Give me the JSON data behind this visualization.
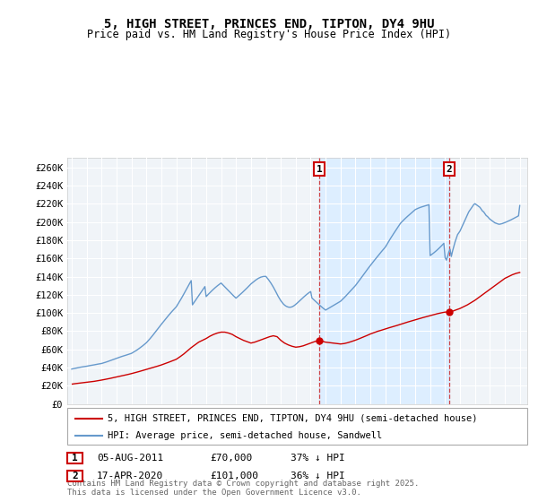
{
  "title": "5, HIGH STREET, PRINCES END, TIPTON, DY4 9HU",
  "subtitle": "Price paid vs. HM Land Registry's House Price Index (HPI)",
  "ylabel_ticks": [
    "£0",
    "£20K",
    "£40K",
    "£60K",
    "£80K",
    "£100K",
    "£120K",
    "£140K",
    "£160K",
    "£180K",
    "£200K",
    "£220K",
    "£240K",
    "£260K"
  ],
  "ytick_values": [
    0,
    20000,
    40000,
    60000,
    80000,
    100000,
    120000,
    140000,
    160000,
    180000,
    200000,
    220000,
    240000,
    260000
  ],
  "ylim": [
    0,
    270000
  ],
  "xlim": [
    1994.7,
    2025.5
  ],
  "background_color": "#f0f0f0",
  "red_color": "#cc0000",
  "blue_color": "#6699cc",
  "shade_color": "#ddeeff",
  "red_label": "5, HIGH STREET, PRINCES END, TIPTON, DY4 9HU (semi-detached house)",
  "blue_label": "HPI: Average price, semi-detached house, Sandwell",
  "marker1_date": "05-AUG-2011",
  "marker1_price": "£70,000",
  "marker1_hpi": "37% ↓ HPI",
  "marker1_year": 2011.58,
  "marker1_value": 70000,
  "marker2_date": "17-APR-2020",
  "marker2_price": "£101,000",
  "marker2_hpi": "36% ↓ HPI",
  "marker2_year": 2020.29,
  "marker2_value": 101000,
  "footer": "Contains HM Land Registry data © Crown copyright and database right 2025.\nThis data is licensed under the Open Government Licence v3.0.",
  "hpi_x": [
    1995.0,
    1995.083,
    1995.167,
    1995.25,
    1995.333,
    1995.417,
    1995.5,
    1995.583,
    1995.667,
    1995.75,
    1995.833,
    1995.917,
    1996.0,
    1996.083,
    1996.167,
    1996.25,
    1996.333,
    1996.417,
    1996.5,
    1996.583,
    1996.667,
    1996.75,
    1996.833,
    1996.917,
    1997.0,
    1997.083,
    1997.167,
    1997.25,
    1997.333,
    1997.417,
    1997.5,
    1997.583,
    1997.667,
    1997.75,
    1997.833,
    1997.917,
    1998.0,
    1998.083,
    1998.167,
    1998.25,
    1998.333,
    1998.417,
    1998.5,
    1998.583,
    1998.667,
    1998.75,
    1998.833,
    1998.917,
    1999.0,
    1999.083,
    1999.167,
    1999.25,
    1999.333,
    1999.417,
    1999.5,
    1999.583,
    1999.667,
    1999.75,
    1999.833,
    1999.917,
    2000.0,
    2000.083,
    2000.167,
    2000.25,
    2000.333,
    2000.417,
    2000.5,
    2000.583,
    2000.667,
    2000.75,
    2000.833,
    2000.917,
    2001.0,
    2001.083,
    2001.167,
    2001.25,
    2001.333,
    2001.417,
    2001.5,
    2001.583,
    2001.667,
    2001.75,
    2001.833,
    2001.917,
    2002.0,
    2002.083,
    2002.167,
    2002.25,
    2002.333,
    2002.417,
    2002.5,
    2002.583,
    2002.667,
    2002.75,
    2002.833,
    2002.917,
    2003.0,
    2003.083,
    2003.167,
    2003.25,
    2003.333,
    2003.417,
    2003.5,
    2003.583,
    2003.667,
    2003.75,
    2003.833,
    2003.917,
    2004.0,
    2004.083,
    2004.167,
    2004.25,
    2004.333,
    2004.417,
    2004.5,
    2004.583,
    2004.667,
    2004.75,
    2004.833,
    2004.917,
    2005.0,
    2005.083,
    2005.167,
    2005.25,
    2005.333,
    2005.417,
    2005.5,
    2005.583,
    2005.667,
    2005.75,
    2005.833,
    2005.917,
    2006.0,
    2006.083,
    2006.167,
    2006.25,
    2006.333,
    2006.417,
    2006.5,
    2006.583,
    2006.667,
    2006.75,
    2006.833,
    2006.917,
    2007.0,
    2007.083,
    2007.167,
    2007.25,
    2007.333,
    2007.417,
    2007.5,
    2007.583,
    2007.667,
    2007.75,
    2007.833,
    2007.917,
    2008.0,
    2008.083,
    2008.167,
    2008.25,
    2008.333,
    2008.417,
    2008.5,
    2008.583,
    2008.667,
    2008.75,
    2008.833,
    2008.917,
    2009.0,
    2009.083,
    2009.167,
    2009.25,
    2009.333,
    2009.417,
    2009.5,
    2009.583,
    2009.667,
    2009.75,
    2009.833,
    2009.917,
    2010.0,
    2010.083,
    2010.167,
    2010.25,
    2010.333,
    2010.417,
    2010.5,
    2010.583,
    2010.667,
    2010.75,
    2010.833,
    2010.917,
    2011.0,
    2011.083,
    2011.167,
    2011.25,
    2011.333,
    2011.417,
    2011.5,
    2011.583,
    2011.667,
    2011.75,
    2011.833,
    2011.917,
    2012.0,
    2012.083,
    2012.167,
    2012.25,
    2012.333,
    2012.417,
    2012.5,
    2012.583,
    2012.667,
    2012.75,
    2012.833,
    2012.917,
    2013.0,
    2013.083,
    2013.167,
    2013.25,
    2013.333,
    2013.417,
    2013.5,
    2013.583,
    2013.667,
    2013.75,
    2013.833,
    2013.917,
    2014.0,
    2014.083,
    2014.167,
    2014.25,
    2014.333,
    2014.417,
    2014.5,
    2014.583,
    2014.667,
    2014.75,
    2014.833,
    2014.917,
    2015.0,
    2015.083,
    2015.167,
    2015.25,
    2015.333,
    2015.417,
    2015.5,
    2015.583,
    2015.667,
    2015.75,
    2015.833,
    2015.917,
    2016.0,
    2016.083,
    2016.167,
    2016.25,
    2016.333,
    2016.417,
    2016.5,
    2016.583,
    2016.667,
    2016.75,
    2016.833,
    2016.917,
    2017.0,
    2017.083,
    2017.167,
    2017.25,
    2017.333,
    2017.417,
    2017.5,
    2017.583,
    2017.667,
    2017.75,
    2017.833,
    2017.917,
    2018.0,
    2018.083,
    2018.167,
    2018.25,
    2018.333,
    2018.417,
    2018.5,
    2018.583,
    2018.667,
    2018.75,
    2018.833,
    2018.917,
    2019.0,
    2019.083,
    2019.167,
    2019.25,
    2019.333,
    2019.417,
    2019.5,
    2019.583,
    2019.667,
    2019.75,
    2019.833,
    2019.917,
    2020.0,
    2020.083,
    2020.167,
    2020.25,
    2020.333,
    2020.417,
    2020.5,
    2020.583,
    2020.667,
    2020.75,
    2020.833,
    2020.917,
    2021.0,
    2021.083,
    2021.167,
    2021.25,
    2021.333,
    2021.417,
    2021.5,
    2021.583,
    2021.667,
    2021.75,
    2021.833,
    2021.917,
    2022.0,
    2022.083,
    2022.167,
    2022.25,
    2022.333,
    2022.417,
    2022.5,
    2022.583,
    2022.667,
    2022.75,
    2022.833,
    2022.917,
    2023.0,
    2023.083,
    2023.167,
    2023.25,
    2023.333,
    2023.417,
    2023.5,
    2023.583,
    2023.667,
    2023.75,
    2023.833,
    2023.917,
    2024.0,
    2024.083,
    2024.167,
    2024.25,
    2024.333,
    2024.417,
    2024.5,
    2024.583,
    2024.667,
    2024.75,
    2024.833,
    2024.917,
    2025.0
  ],
  "hpi_y": [
    38500,
    38800,
    39100,
    39300,
    39600,
    39900,
    40200,
    40500,
    40700,
    41000,
    41200,
    41400,
    41600,
    41900,
    42100,
    42400,
    42600,
    42900,
    43100,
    43400,
    43700,
    43900,
    44100,
    44300,
    44600,
    45000,
    45400,
    45800,
    46300,
    46800,
    47300,
    47800,
    48300,
    48800,
    49300,
    49700,
    50200,
    50700,
    51200,
    51700,
    52200,
    52600,
    53100,
    53500,
    53900,
    54400,
    54800,
    55200,
    55700,
    56500,
    57300,
    58100,
    59000,
    59900,
    60900,
    61900,
    62900,
    64000,
    65100,
    66200,
    67400,
    68900,
    70400,
    72000,
    73600,
    75300,
    77000,
    78800,
    80600,
    82400,
    84200,
    85900,
    87600,
    89300,
    91000,
    92700,
    94400,
    96000,
    97700,
    99300,
    100900,
    102400,
    103900,
    105300,
    106800,
    109000,
    111200,
    113500,
    115800,
    118200,
    120700,
    123200,
    125700,
    128200,
    130700,
    133100,
    135600,
    109000,
    111000,
    113000,
    115000,
    117000,
    119000,
    121000,
    123000,
    125000,
    127000,
    129000,
    118000,
    119500,
    120900,
    122300,
    123700,
    125000,
    126300,
    127500,
    128700,
    129800,
    130900,
    131900,
    132900,
    131500,
    130100,
    128700,
    127300,
    125900,
    124500,
    123100,
    121700,
    120300,
    118900,
    117600,
    116300,
    117500,
    118700,
    119900,
    121100,
    122400,
    123700,
    125000,
    126300,
    127700,
    129100,
    130500,
    131900,
    133000,
    134100,
    135200,
    136300,
    137200,
    138100,
    138800,
    139400,
    139800,
    140100,
    140200,
    140200,
    138500,
    136800,
    134900,
    132900,
    130700,
    128400,
    125900,
    123300,
    120600,
    118000,
    115700,
    113500,
    111700,
    110000,
    108700,
    107700,
    107000,
    106500,
    106300,
    106400,
    106800,
    107500,
    108400,
    109500,
    110700,
    111900,
    113200,
    114500,
    115800,
    117100,
    118300,
    119500,
    120600,
    121700,
    122700,
    123600,
    116500,
    115200,
    113900,
    112600,
    111300,
    110000,
    108800,
    107600,
    106400,
    105300,
    104200,
    103200,
    104000,
    104800,
    105600,
    106400,
    107200,
    108000,
    108800,
    109600,
    110400,
    111200,
    112000,
    112900,
    114200,
    115500,
    116900,
    118300,
    119800,
    121300,
    122800,
    124300,
    125800,
    127300,
    128700,
    130200,
    132000,
    133800,
    135600,
    137400,
    139300,
    141200,
    143100,
    145000,
    146900,
    148700,
    150500,
    152400,
    154100,
    155800,
    157500,
    159200,
    160900,
    162600,
    164300,
    166000,
    167600,
    169200,
    170800,
    172400,
    174700,
    176900,
    179200,
    181500,
    183700,
    185800,
    187900,
    190000,
    192100,
    194200,
    196200,
    198200,
    199700,
    201100,
    202500,
    203800,
    205100,
    206300,
    207500,
    208700,
    209900,
    211100,
    212300,
    213500,
    214200,
    214800,
    215400,
    215900,
    216400,
    216800,
    217200,
    217600,
    218000,
    218400,
    218900,
    163000,
    164000,
    165000,
    166100,
    167200,
    168400,
    169600,
    170900,
    172200,
    173600,
    175000,
    176500,
    161000,
    158000,
    162000,
    167000,
    170000,
    162000,
    168000,
    173000,
    178000,
    182000,
    186000,
    188000,
    190000,
    193000,
    196000,
    199000,
    202000,
    205000,
    208000,
    211000,
    213000,
    215000,
    217000,
    219000,
    220000,
    219000,
    218000,
    217000,
    216000,
    214000,
    212000,
    211000,
    209000,
    207000,
    206000,
    204500,
    203000,
    202000,
    201000,
    200000,
    199000,
    198500,
    198000,
    197500,
    197500,
    197800,
    198200,
    198700,
    199200,
    199800,
    200400,
    201000,
    201600,
    202300,
    203000,
    203700,
    204400,
    205200,
    205900,
    206700,
    218000
  ],
  "price_x": [
    1995.04,
    1995.25,
    1995.5,
    1995.75,
    1996.0,
    1996.25,
    1996.5,
    1996.75,
    1997.0,
    1997.25,
    1997.5,
    1997.75,
    1998.0,
    1998.25,
    1998.5,
    1998.75,
    1999.0,
    1999.25,
    1999.5,
    1999.75,
    2000.0,
    2000.25,
    2000.5,
    2000.75,
    2001.0,
    2001.25,
    2001.5,
    2001.75,
    2002.0,
    2002.25,
    2002.5,
    2002.75,
    2003.0,
    2003.25,
    2003.5,
    2003.75,
    2004.0,
    2004.25,
    2004.5,
    2004.75,
    2005.0,
    2005.25,
    2005.5,
    2005.75,
    2006.0,
    2006.25,
    2006.5,
    2006.75,
    2007.0,
    2007.25,
    2007.5,
    2007.75,
    2008.0,
    2008.25,
    2008.5,
    2008.75,
    2009.0,
    2009.25,
    2009.5,
    2009.75,
    2010.0,
    2010.25,
    2010.5,
    2010.75,
    2011.0,
    2011.25,
    2011.58,
    2011.75,
    2012.0,
    2012.25,
    2012.5,
    2012.75,
    2013.0,
    2013.25,
    2013.5,
    2013.75,
    2014.0,
    2014.25,
    2014.5,
    2014.75,
    2015.0,
    2015.25,
    2015.5,
    2015.75,
    2016.0,
    2016.25,
    2016.5,
    2016.75,
    2017.0,
    2017.25,
    2017.5,
    2017.75,
    2018.0,
    2018.25,
    2018.5,
    2018.75,
    2019.0,
    2019.25,
    2019.5,
    2019.75,
    2020.0,
    2020.29,
    2020.5,
    2020.75,
    2021.0,
    2021.25,
    2021.5,
    2021.75,
    2022.0,
    2022.25,
    2022.5,
    2022.75,
    2023.0,
    2023.25,
    2023.5,
    2023.75,
    2024.0,
    2024.25,
    2024.5,
    2024.75,
    2025.0
  ],
  "price_y": [
    22000,
    22500,
    23000,
    23500,
    24000,
    24500,
    25000,
    25700,
    26400,
    27200,
    28000,
    28900,
    29800,
    30700,
    31600,
    32500,
    33500,
    34600,
    35700,
    36900,
    38100,
    39300,
    40500,
    41700,
    43000,
    44500,
    46000,
    47600,
    49200,
    52000,
    55000,
    58500,
    62000,
    65000,
    68000,
    70000,
    72000,
    74500,
    76500,
    78000,
    79000,
    79000,
    78000,
    76500,
    74000,
    72000,
    70000,
    68500,
    67000,
    68000,
    69500,
    71000,
    72500,
    74000,
    75000,
    74000,
    70000,
    67000,
    65000,
    63500,
    62500,
    63000,
    64000,
    65500,
    67000,
    68500,
    70000,
    69000,
    68000,
    67500,
    67000,
    66500,
    66000,
    66500,
    67500,
    68800,
    70200,
    71800,
    73500,
    75200,
    77000,
    78500,
    80000,
    81200,
    82500,
    83800,
    85000,
    86200,
    87500,
    88800,
    90100,
    91300,
    92500,
    93700,
    94900,
    96000,
    97100,
    98200,
    99300,
    100200,
    101000,
    101000,
    102000,
    103500,
    105000,
    107000,
    109000,
    111500,
    114000,
    117000,
    120000,
    123000,
    126000,
    129000,
    132000,
    135000,
    138000,
    140000,
    142000,
    143500,
    144500
  ],
  "fig_width": 6.0,
  "fig_height": 5.6,
  "dpi": 100
}
